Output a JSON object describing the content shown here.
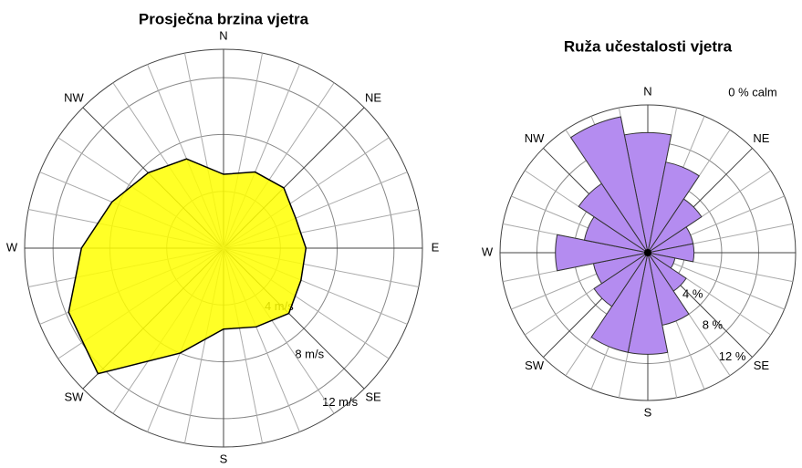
{
  "chart_data": [
    {
      "type": "radar",
      "title": "Prosječna brzina vjetra",
      "categories": [
        "N",
        null,
        "NE",
        null,
        "E",
        null,
        "SE",
        null,
        "S",
        null,
        "SW",
        null,
        "W",
        null,
        "NW",
        null
      ],
      "values": [
        5.2,
        5.8,
        6.0,
        5.5,
        5.8,
        5.9,
        6.5,
        6.0,
        5.7,
        8.0,
        12.5,
        11.8,
        10.0,
        8.5,
        7.5,
        6.8
      ],
      "color": "#ffff00",
      "rlim": [
        0,
        14
      ],
      "rticks": [
        {
          "value": 4,
          "label": "4 m/s"
        },
        {
          "value": 8,
          "label": "8 m/s"
        },
        {
          "value": 12,
          "label": "12 m/s"
        }
      ]
    },
    {
      "type": "windrose",
      "title": "Ruža učestalosti vjetra",
      "annotation": "0 % calm",
      "categories": [
        "N",
        null,
        "NE",
        null,
        "E",
        null,
        "SE",
        null,
        "S",
        null,
        "SW",
        null,
        "W",
        null,
        "NW",
        null
      ],
      "values": [
        13,
        10,
        7,
        5,
        5,
        3,
        5,
        8,
        11,
        11,
        7,
        6,
        10,
        7,
        9,
        15
      ],
      "color": "#b48cf0",
      "rlim": [
        0,
        16
      ],
      "rticks": [
        {
          "value": 4,
          "label": "4 %"
        },
        {
          "value": 8,
          "label": "8 %"
        },
        {
          "value": 12,
          "label": "12 %"
        }
      ]
    }
  ]
}
